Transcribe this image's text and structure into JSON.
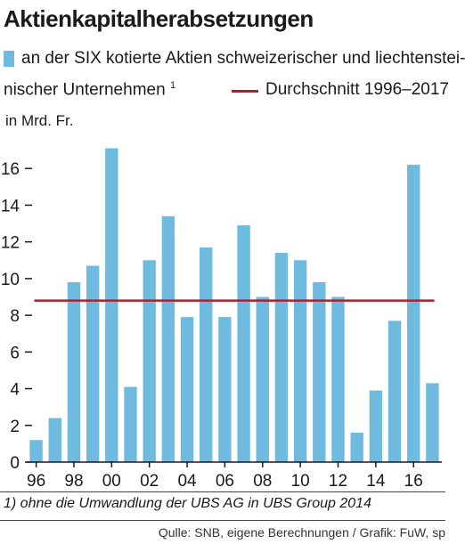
{
  "title": "Aktienkapitalherabsetzungen",
  "legend": {
    "series_label_line1": "an der SIX kotierte Aktien schweizerischer und liechtenstei-",
    "series_label_line2": "nischer Unternehmen",
    "series_footnote_mark": "1",
    "average_label": "Durchschnitt 1996–2017"
  },
  "footnote": "1) ohne die Umwandlung der UBS AG in UBS Group 2014",
  "source": "Qulle: SNB, eigene Berechnungen / Grafik: FuW, sp",
  "colors": {
    "bar": "#6fbadf",
    "average_line": "#b01e2c"
  },
  "chart_data": {
    "type": "bar",
    "ylabel": "in Mrd. Fr.",
    "ylim": [
      0,
      18
    ],
    "yticks": [
      0,
      2,
      4,
      6,
      8,
      10,
      12,
      14,
      16
    ],
    "categories": [
      "1996",
      "1997",
      "1998",
      "1999",
      "2000",
      "2001",
      "2002",
      "2003",
      "2004",
      "2005",
      "2006",
      "2007",
      "2008",
      "2009",
      "2010",
      "2011",
      "2012",
      "2013",
      "2014",
      "2015",
      "2016",
      "2017"
    ],
    "xtick_labels": [
      "96",
      "98",
      "00",
      "02",
      "04",
      "06",
      "08",
      "10",
      "12",
      "14",
      "16"
    ],
    "series": [
      {
        "name": "an der SIX kotierte Aktien schweizerischer und liechtensteinischer Unternehmen",
        "values": [
          1.2,
          2.4,
          9.8,
          10.7,
          17.1,
          4.1,
          11.0,
          13.4,
          7.9,
          11.7,
          7.9,
          12.9,
          9.0,
          11.4,
          11.0,
          9.8,
          9.0,
          1.6,
          3.9,
          7.7,
          16.2,
          4.3
        ]
      }
    ],
    "average": 8.8
  }
}
